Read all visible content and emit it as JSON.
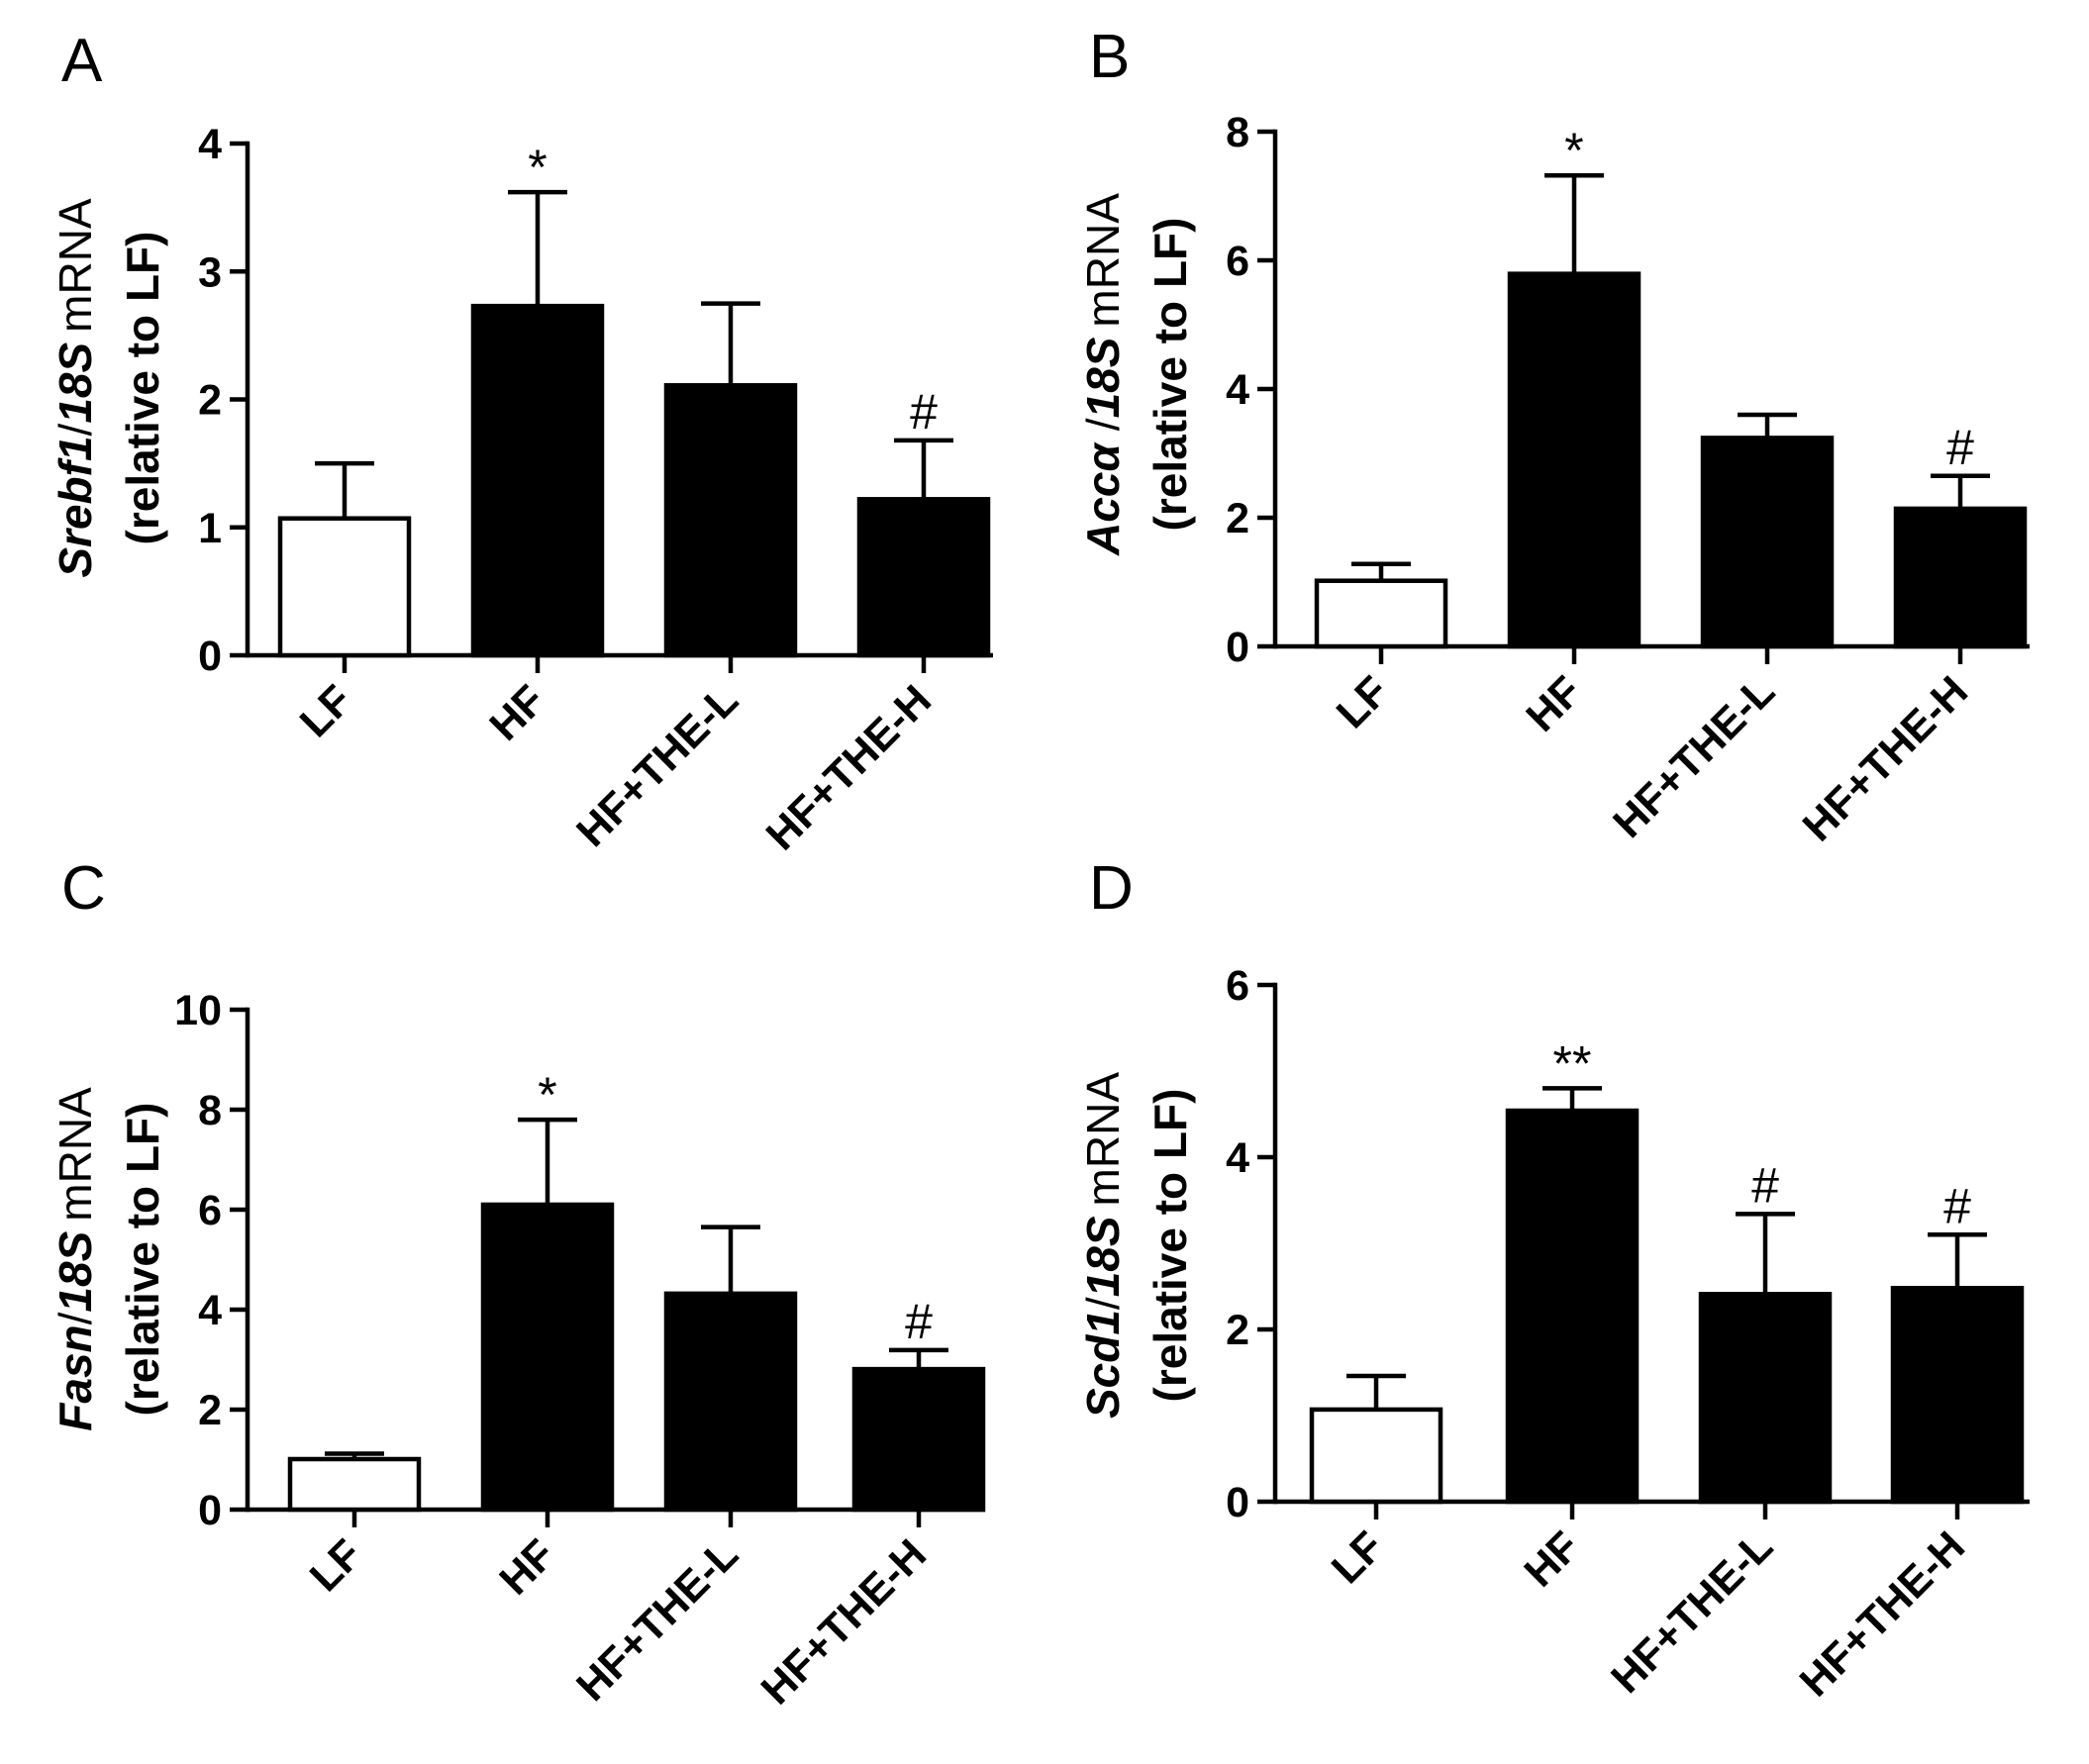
{
  "chart_data": [
    {
      "panel": "A",
      "type": "bar",
      "categories": [
        "LF",
        "HF",
        "HF+THE-L",
        "HF+THE-H"
      ],
      "values": [
        1.07,
        2.73,
        2.11,
        1.22
      ],
      "errors": [
        0.43,
        0.89,
        0.64,
        0.46
      ],
      "fills": [
        "#ffffff",
        "#000000",
        "#000000",
        "#000000"
      ],
      "significance": [
        "",
        "*",
        "",
        "#"
      ],
      "ylabel_gene": "Srebf1",
      "ylabel_sep": "/",
      "ylabel_ref": "18S",
      "ylabel_mid": "mRNA",
      "ylabel_line2": "(relative to LF)",
      "ylim": [
        0,
        4
      ],
      "yticks": [
        0,
        1,
        2,
        3,
        4
      ]
    },
    {
      "panel": "B",
      "type": "bar",
      "categories": [
        "LF",
        "HF",
        "HF+THE-L",
        "HF+THE-H"
      ],
      "values": [
        1.02,
        5.79,
        3.24,
        2.14
      ],
      "errors": [
        0.26,
        1.53,
        0.36,
        0.51
      ],
      "fills": [
        "#ffffff",
        "#000000",
        "#000000",
        "#000000"
      ],
      "significance": [
        "",
        "*",
        "",
        "#"
      ],
      "ylabel_gene": "Accα",
      "ylabel_sep": " /",
      "ylabel_ref": "18S",
      "ylabel_mid": "mRNA",
      "ylabel_line2": "(relative to LF)",
      "ylim": [
        0,
        8
      ],
      "yticks": [
        0,
        2,
        4,
        6,
        8
      ]
    },
    {
      "panel": "C",
      "type": "bar",
      "categories": [
        "LF",
        "HF",
        "HF+THE-L",
        "HF+THE-H"
      ],
      "values": [
        1.01,
        6.1,
        4.32,
        2.81
      ],
      "errors": [
        0.11,
        1.7,
        1.33,
        0.38
      ],
      "fills": [
        "#ffffff",
        "#000000",
        "#000000",
        "#000000"
      ],
      "significance": [
        "",
        "*",
        "",
        "#"
      ],
      "ylabel_gene": "Fasn",
      "ylabel_sep": "/",
      "ylabel_ref": "18S",
      "ylabel_mid": "mRNA",
      "ylabel_line2": "(relative to LF)",
      "ylim": [
        0,
        10
      ],
      "yticks": [
        0,
        2,
        4,
        6,
        8,
        10
      ]
    },
    {
      "panel": "D",
      "type": "bar",
      "categories": [
        "LF",
        "HF",
        "HF+THE-L",
        "HF+THE-H"
      ],
      "values": [
        1.07,
        4.54,
        2.41,
        2.48
      ],
      "errors": [
        0.39,
        0.26,
        0.93,
        0.62
      ],
      "fills": [
        "#ffffff",
        "#000000",
        "#000000",
        "#000000"
      ],
      "significance": [
        "",
        "**",
        "#",
        "#"
      ],
      "ylabel_gene": "Scd1",
      "ylabel_sep": "/",
      "ylabel_ref": "18S",
      "ylabel_mid": "mRNA",
      "ylabel_line2": "(relative to LF)",
      "ylim": [
        0,
        6
      ],
      "yticks": [
        0,
        2,
        4,
        6
      ]
    }
  ]
}
